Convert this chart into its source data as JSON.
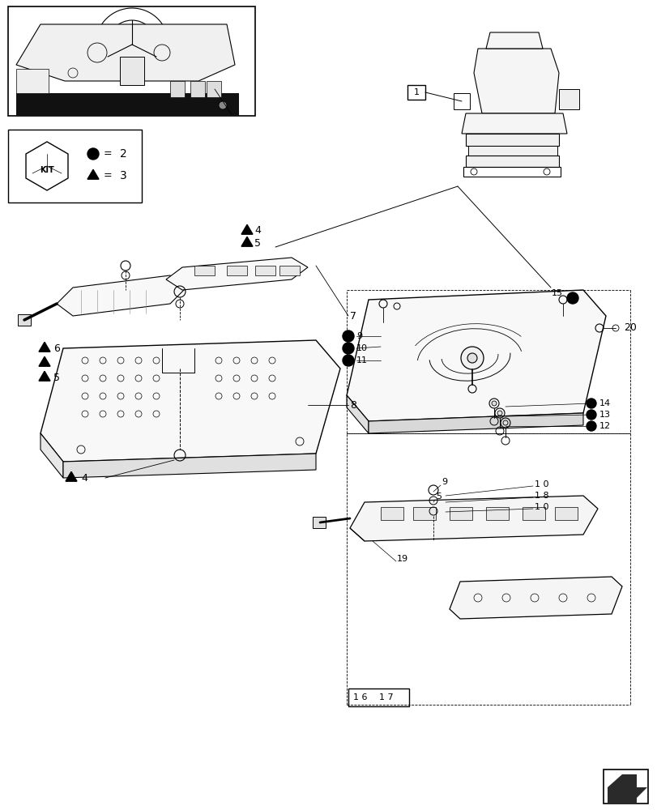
{
  "bg_color": "#ffffff",
  "fig_width": 8.12,
  "fig_height": 10.0,
  "dpi": 100
}
